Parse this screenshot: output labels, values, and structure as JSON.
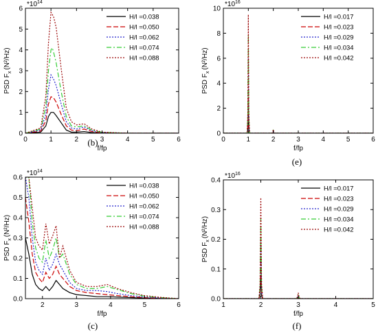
{
  "chart_data": [
    {
      "id": "b",
      "type": "line",
      "caption": "(b)",
      "multiplier": "*10",
      "multiplier_exp": "14",
      "ylabel": "PSD F",
      "ylabel_sub": "x",
      "ylabel_unit": "(N²/Hz)",
      "xlabel": "f/fp",
      "xlim": [
        0,
        6
      ],
      "ylim": [
        0,
        6
      ],
      "xticks": [
        0,
        1,
        2,
        3,
        4,
        5,
        6
      ],
      "yticks": [
        0,
        1,
        2,
        3,
        4,
        5,
        6
      ],
      "legend_position": "top-right",
      "series": [
        {
          "name": "H/l =0.038",
          "color": "#000000",
          "dash": "solid",
          "x": [
            0,
            0.6,
            0.8,
            0.9,
            1.0,
            1.1,
            1.2,
            1.4,
            1.6,
            1.8,
            2.0,
            2.3,
            2.6,
            3.0,
            4,
            6
          ],
          "y": [
            0,
            0.05,
            0.35,
            0.8,
            1.0,
            1.0,
            0.85,
            0.5,
            0.15,
            0.05,
            0.05,
            0.08,
            0.03,
            0.01,
            0,
            0
          ]
        },
        {
          "name": "H/l =0.050",
          "color": "#cc0000",
          "dash": "7,3",
          "x": [
            0,
            0.6,
            0.8,
            0.9,
            1.0,
            1.1,
            1.2,
            1.4,
            1.6,
            1.8,
            2.0,
            2.3,
            2.6,
            3.0,
            4,
            6
          ],
          "y": [
            0,
            0.1,
            0.6,
            1.4,
            1.75,
            1.7,
            1.5,
            0.9,
            0.35,
            0.15,
            0.12,
            0.2,
            0.08,
            0.02,
            0,
            0
          ]
        },
        {
          "name": "H/l =0.062",
          "color": "#2222cc",
          "dash": "2,2",
          "x": [
            0,
            0.6,
            0.8,
            0.9,
            1.0,
            1.1,
            1.2,
            1.4,
            1.6,
            1.8,
            2.0,
            2.3,
            2.6,
            3.0,
            4,
            6
          ],
          "y": [
            0,
            0.15,
            0.9,
            2.1,
            2.8,
            2.6,
            2.3,
            1.4,
            0.55,
            0.25,
            0.2,
            0.3,
            0.12,
            0.03,
            0,
            0
          ]
        },
        {
          "name": "H/l =0.074",
          "color": "#33cc33",
          "dash": "7,3,2,3",
          "x": [
            0,
            0.6,
            0.8,
            0.9,
            1.0,
            1.05,
            1.1,
            1.2,
            1.4,
            1.6,
            1.8,
            2.0,
            2.3,
            2.6,
            3.0,
            4,
            6
          ],
          "y": [
            0,
            0.2,
            1.3,
            3.0,
            4.0,
            4.1,
            3.9,
            3.4,
            2.0,
            0.8,
            0.35,
            0.3,
            0.35,
            0.15,
            0.04,
            0,
            0
          ]
        },
        {
          "name": "H/l =0.088",
          "color": "#990000",
          "dash": "2,2",
          "x": [
            0,
            0.6,
            0.8,
            0.9,
            1.0,
            1.1,
            1.2,
            1.4,
            1.6,
            1.8,
            2.0,
            2.3,
            2.6,
            3.0,
            4,
            6
          ],
          "y": [
            0,
            0.25,
            1.8,
            4.3,
            5.8,
            5.6,
            5.1,
            3.1,
            1.2,
            0.55,
            0.4,
            0.45,
            0.2,
            0.05,
            0,
            0
          ]
        }
      ]
    },
    {
      "id": "e",
      "type": "line",
      "caption": "(e)",
      "multiplier": "*10",
      "multiplier_exp": "16",
      "ylabel": "PSD F",
      "ylabel_sub": "x",
      "ylabel_unit": "(N²/Hz)",
      "xlabel": "f/fp",
      "xlim": [
        0,
        6
      ],
      "ylim": [
        0,
        10
      ],
      "xticks": [
        0,
        1,
        2,
        3,
        4,
        5,
        6
      ],
      "yticks": [
        0,
        2,
        4,
        6,
        8,
        10
      ],
      "legend_position": "top-right",
      "series": [
        {
          "name": "H/l =0.017",
          "color": "#000000",
          "dash": "solid",
          "x": [
            0,
            0.95,
            0.98,
            1.0,
            1.02,
            1.05,
            1.95,
            1.98,
            2.0,
            2.02,
            2.05,
            6
          ],
          "y": [
            0,
            0,
            0.3,
            2.0,
            0.3,
            0,
            0,
            0.02,
            0.05,
            0.02,
            0,
            0
          ]
        },
        {
          "name": "H/l =0.023",
          "color": "#cc0000",
          "dash": "7,3",
          "x": [
            0,
            0.95,
            0.98,
            1.0,
            1.02,
            1.05,
            1.95,
            1.98,
            2.0,
            2.02,
            2.05,
            6
          ],
          "y": [
            0,
            0,
            0.6,
            3.8,
            0.6,
            0,
            0,
            0.04,
            0.1,
            0.04,
            0,
            0
          ]
        },
        {
          "name": "H/l =0.029",
          "color": "#2222cc",
          "dash": "2,2",
          "x": [
            0,
            0.95,
            0.98,
            1.0,
            1.02,
            1.05,
            1.95,
            1.98,
            2.0,
            2.02,
            2.05,
            6
          ],
          "y": [
            0,
            0,
            1.0,
            6.0,
            1.0,
            0,
            0,
            0.06,
            0.15,
            0.06,
            0,
            0
          ]
        },
        {
          "name": "H/l =0.034",
          "color": "#33cc33",
          "dash": "7,3,2,3",
          "x": [
            0,
            0.95,
            0.98,
            1.0,
            1.02,
            1.05,
            1.95,
            1.98,
            2.0,
            2.02,
            2.05,
            6
          ],
          "y": [
            0,
            0,
            1.3,
            7.8,
            1.3,
            0,
            0,
            0.09,
            0.22,
            0.09,
            0,
            0
          ]
        },
        {
          "name": "H/l =0.042",
          "color": "#990000",
          "dash": "2,2",
          "x": [
            0,
            0.95,
            0.98,
            1.0,
            1.02,
            1.05,
            1.95,
            1.98,
            2.0,
            2.02,
            2.05,
            6
          ],
          "y": [
            0,
            0,
            1.6,
            9.5,
            1.6,
            0,
            0,
            0.12,
            0.3,
            0.12,
            0,
            0
          ]
        }
      ]
    },
    {
      "id": "c",
      "type": "line",
      "caption": "(c)",
      "multiplier": "*10",
      "multiplier_exp": "14",
      "ylabel": "PSD F",
      "ylabel_sub": "x",
      "ylabel_unit": "(N²/Hz)",
      "xlabel": "f/fp",
      "xlim": [
        1.5,
        6
      ],
      "ylim": [
        0,
        0.6
      ],
      "xticks": [
        2,
        3,
        4,
        5,
        6
      ],
      "yticks": [
        0.0,
        0.1,
        0.2,
        0.3,
        0.4,
        0.5,
        0.6
      ],
      "legend_position": "top-right",
      "series": [
        {
          "name": "H/l =0.038",
          "color": "#000000",
          "dash": "solid",
          "x": [
            1.5,
            1.6,
            1.7,
            1.8,
            1.9,
            2.0,
            2.1,
            2.2,
            2.3,
            2.4,
            2.5,
            2.6,
            2.7,
            2.8,
            3.0,
            3.3,
            3.6,
            3.9,
            4.2,
            4.6,
            5.0,
            5.5,
            6
          ],
          "y": [
            0.3,
            0.22,
            0.12,
            0.07,
            0.05,
            0.04,
            0.06,
            0.04,
            0.06,
            0.09,
            0.07,
            0.05,
            0.04,
            0.03,
            0.02,
            0.015,
            0.01,
            0.01,
            0.008,
            0.005,
            0.003,
            0.001,
            0
          ]
        },
        {
          "name": "H/l =0.050",
          "color": "#cc0000",
          "dash": "7,3",
          "x": [
            1.5,
            1.6,
            1.7,
            1.8,
            1.9,
            2.0,
            2.1,
            2.2,
            2.3,
            2.4,
            2.5,
            2.6,
            2.7,
            2.8,
            3.0,
            3.3,
            3.6,
            3.9,
            4.2,
            4.6,
            5.0,
            5.5,
            6
          ],
          "y": [
            0.5,
            0.38,
            0.22,
            0.13,
            0.1,
            0.08,
            0.13,
            0.1,
            0.12,
            0.16,
            0.12,
            0.1,
            0.08,
            0.06,
            0.04,
            0.03,
            0.025,
            0.02,
            0.015,
            0.01,
            0.005,
            0.002,
            0
          ]
        },
        {
          "name": "H/l =0.062",
          "color": "#2222cc",
          "dash": "2,2",
          "x": [
            1.5,
            1.6,
            1.7,
            1.8,
            1.9,
            2.0,
            2.1,
            2.2,
            2.3,
            2.4,
            2.5,
            2.6,
            2.7,
            2.8,
            3.0,
            3.3,
            3.6,
            3.9,
            4.2,
            4.6,
            5.0,
            5.5,
            6
          ],
          "y": [
            0.6,
            0.5,
            0.3,
            0.18,
            0.14,
            0.12,
            0.2,
            0.14,
            0.17,
            0.22,
            0.17,
            0.14,
            0.11,
            0.08,
            0.05,
            0.04,
            0.04,
            0.035,
            0.025,
            0.015,
            0.008,
            0.003,
            0
          ]
        },
        {
          "name": "H/l =0.074",
          "color": "#33cc33",
          "dash": "7,3,2,3",
          "x": [
            1.5,
            1.6,
            1.7,
            1.8,
            1.9,
            2.0,
            2.1,
            2.2,
            2.3,
            2.4,
            2.5,
            2.6,
            2.7,
            2.8,
            3.0,
            3.3,
            3.6,
            3.9,
            4.2,
            4.6,
            5.0,
            5.5,
            6
          ],
          "y": [
            0.6,
            0.6,
            0.38,
            0.25,
            0.2,
            0.18,
            0.29,
            0.2,
            0.24,
            0.3,
            0.2,
            0.22,
            0.17,
            0.12,
            0.07,
            0.05,
            0.05,
            0.06,
            0.045,
            0.025,
            0.012,
            0.005,
            0
          ]
        },
        {
          "name": "H/l =0.088",
          "color": "#990000",
          "dash": "2,2",
          "x": [
            1.5,
            1.6,
            1.7,
            1.8,
            1.9,
            2.0,
            2.1,
            2.2,
            2.3,
            2.4,
            2.5,
            2.6,
            2.7,
            2.8,
            3.0,
            3.3,
            3.6,
            3.9,
            4.2,
            4.6,
            5.0,
            5.5,
            6
          ],
          "y": [
            0.6,
            0.6,
            0.45,
            0.3,
            0.26,
            0.24,
            0.37,
            0.27,
            0.31,
            0.36,
            0.2,
            0.26,
            0.2,
            0.14,
            0.08,
            0.06,
            0.06,
            0.07,
            0.05,
            0.03,
            0.015,
            0.006,
            0
          ]
        }
      ]
    },
    {
      "id": "f",
      "type": "line",
      "caption": "(f)",
      "multiplier": "*10",
      "multiplier_exp": "16",
      "ylabel": "PSD F",
      "ylabel_sub": "x",
      "ylabel_unit": "(N²/Hz)",
      "xlabel": "f/fp",
      "xlim": [
        1,
        5
      ],
      "ylim": [
        0,
        0.4
      ],
      "xticks": [
        1,
        2,
        3,
        4,
        5
      ],
      "yticks": [
        0.0,
        0.1,
        0.2,
        0.3,
        0.4
      ],
      "legend_position": "top-right",
      "series": [
        {
          "name": "H/l =0.017",
          "color": "#000000",
          "dash": "solid",
          "x": [
            1,
            1.95,
            1.98,
            2.0,
            2.02,
            2.05,
            2.95,
            2.98,
            3.0,
            3.02,
            3.05,
            5
          ],
          "y": [
            0,
            0,
            0.01,
            0.07,
            0.01,
            0,
            0,
            0.001,
            0.004,
            0.001,
            0,
            0
          ]
        },
        {
          "name": "H/l =0.023",
          "color": "#cc0000",
          "dash": "7,3",
          "x": [
            1,
            1.95,
            1.98,
            2.0,
            2.02,
            2.05,
            2.95,
            2.98,
            3.0,
            3.02,
            3.05,
            5
          ],
          "y": [
            0,
            0,
            0.02,
            0.13,
            0.02,
            0,
            0,
            0.002,
            0.007,
            0.002,
            0,
            0
          ]
        },
        {
          "name": "H/l =0.029",
          "color": "#2222cc",
          "dash": "2,2",
          "x": [
            1,
            1.95,
            1.98,
            2.0,
            2.02,
            2.05,
            2.95,
            2.98,
            3.0,
            3.02,
            3.05,
            5
          ],
          "y": [
            0,
            0,
            0.03,
            0.2,
            0.03,
            0,
            0,
            0.003,
            0.011,
            0.003,
            0,
            0
          ]
        },
        {
          "name": "H/l =0.034",
          "color": "#33cc33",
          "dash": "7,3,2,3",
          "x": [
            1,
            1.95,
            1.98,
            2.0,
            2.02,
            2.05,
            2.95,
            2.98,
            3.0,
            3.02,
            3.05,
            5
          ],
          "y": [
            0,
            0,
            0.04,
            0.27,
            0.04,
            0,
            0,
            0.004,
            0.015,
            0.004,
            0,
            0
          ]
        },
        {
          "name": "H/l =0.042",
          "color": "#990000",
          "dash": "2,2",
          "x": [
            1,
            1.95,
            1.98,
            2.0,
            2.02,
            2.05,
            2.95,
            2.98,
            3.0,
            3.02,
            3.05,
            5
          ],
          "y": [
            0,
            0,
            0.05,
            0.34,
            0.05,
            0,
            0,
            0.006,
            0.02,
            0.006,
            0,
            0
          ]
        }
      ]
    }
  ]
}
